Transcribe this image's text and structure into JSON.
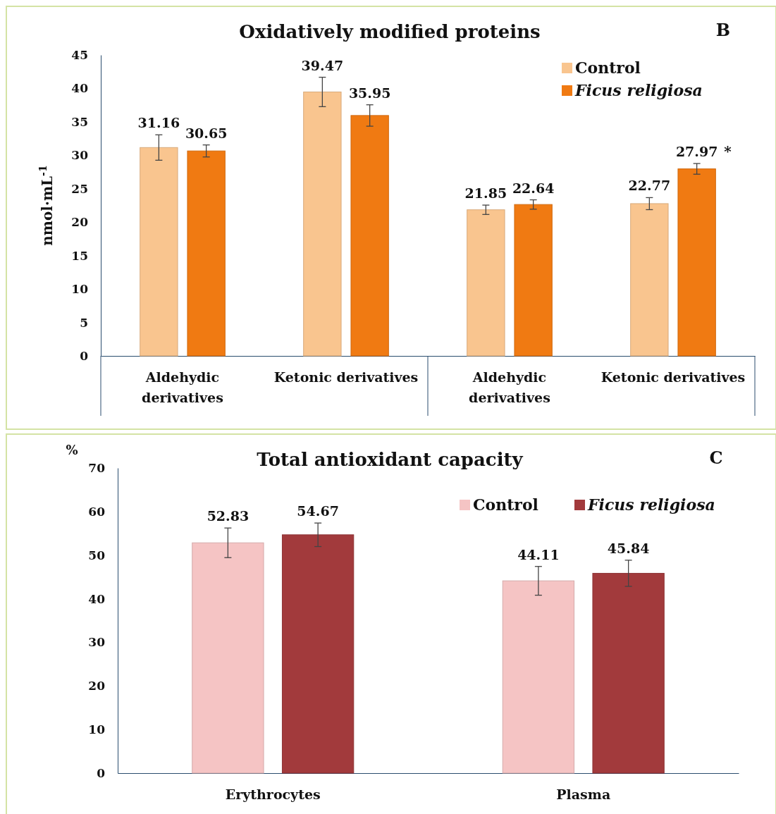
{
  "chart_data": [
    {
      "type": "bar",
      "title": "Oxidatively modified proteins",
      "ylabel": "nmol·mL$^{-1}$",
      "categories": [
        "Aldehydic derivatives",
        "Ketonic derivatives",
        "Aldehydic derivatives",
        "Ketonic derivatives"
      ],
      "series": [
        {
          "name": "Control",
          "color": "#f9c58f",
          "values": [
            31.16,
            39.47,
            21.85,
            22.77
          ],
          "errors": [
            1.9,
            2.2,
            0.7,
            0.9
          ]
        },
        {
          "name": "Ficus religiosa",
          "color": "#f07a12",
          "values": [
            30.65,
            35.95,
            22.64,
            27.97
          ],
          "errors": [
            0.9,
            1.6,
            0.7,
            0.8
          ]
        }
      ],
      "ylim": [
        0,
        45
      ],
      "yticks": [
        0,
        5,
        10,
        15,
        20,
        25,
        30,
        35,
        40,
        45
      ],
      "data_labels": true,
      "legend": "top right",
      "grid": false,
      "annotations": [
        "B",
        "*"
      ]
    },
    {
      "type": "bar",
      "title": "Total antioxidant capacity",
      "ylabel": "%",
      "categories": [
        "Erythrocytes",
        "Plasma"
      ],
      "series": [
        {
          "name": "Control",
          "color": "#f5c4c4",
          "values": [
            52.83,
            44.11
          ],
          "errors": [
            3.4,
            3.3
          ]
        },
        {
          "name": "Ficus religiosa",
          "color": "#a23a3c",
          "values": [
            54.67,
            45.84
          ],
          "errors": [
            2.7,
            3.0
          ]
        }
      ],
      "ylim": [
        0,
        70
      ],
      "yticks": [
        0,
        10,
        20,
        30,
        40,
        50,
        60,
        70
      ],
      "data_labels": true,
      "legend": "top right",
      "grid": false,
      "annotations": [
        "C"
      ]
    }
  ]
}
